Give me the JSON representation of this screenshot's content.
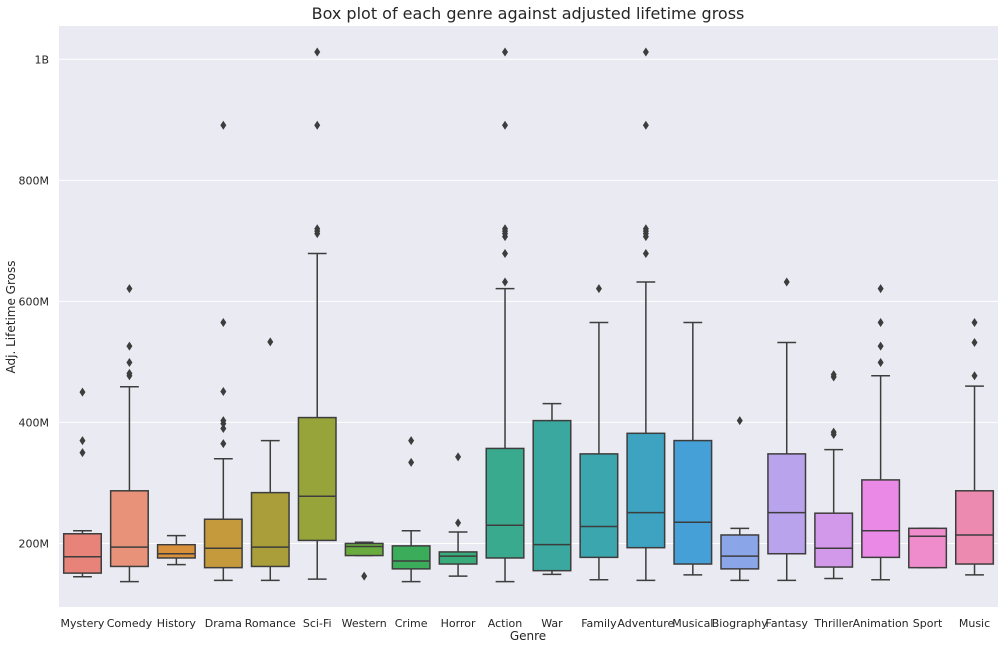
{
  "chart_data": {
    "type": "box",
    "title": "Box plot of each genre against adjusted lifetime gross",
    "xlabel": "Genre",
    "ylabel": "Adj. Lifetime Gross",
    "ylim": [
      95000000,
      1055000000
    ],
    "yticks": [
      {
        "value": 200000000,
        "label": "200M"
      },
      {
        "value": 400000000,
        "label": "400M"
      },
      {
        "value": 600000000,
        "label": "600M"
      },
      {
        "value": 800000000,
        "label": "800M"
      },
      {
        "value": 1000000000,
        "label": "1B"
      }
    ],
    "grid": true,
    "boxes": [
      {
        "category": "Mystery",
        "color": "#e8837a",
        "whislo": 145000000,
        "q1": 151000000,
        "median": 178000000,
        "q3": 216000000,
        "whishi": 221000000,
        "outliers": [
          350000000,
          370000000,
          450000000
        ]
      },
      {
        "category": "Comedy",
        "color": "#e8927a",
        "whislo": 137000000,
        "q1": 162000000,
        "median": 194000000,
        "q3": 287000000,
        "whishi": 459000000,
        "outliers": [
          477000000,
          481000000,
          499000000,
          526000000,
          621000000
        ]
      },
      {
        "category": "History",
        "color": "#d9903b",
        "whislo": 165000000,
        "q1": 176000000,
        "median": 183000000,
        "q3": 198000000,
        "whishi": 213000000,
        "outliers": []
      },
      {
        "category": "Drama",
        "color": "#c49a3c",
        "whislo": 139000000,
        "q1": 160000000,
        "median": 192000000,
        "q3": 240000000,
        "whishi": 340000000,
        "outliers": [
          365000000,
          390000000,
          398000000,
          403000000,
          451000000,
          565000000,
          891000000
        ]
      },
      {
        "category": "Romance",
        "color": "#aa9e3a",
        "whislo": 139000000,
        "q1": 162000000,
        "median": 194000000,
        "q3": 284000000,
        "whishi": 370000000,
        "outliers": [
          533000000
        ]
      },
      {
        "category": "Sci-Fi",
        "color": "#96a43a",
        "whislo": 141000000,
        "q1": 205000000,
        "median": 278000000,
        "q3": 408000000,
        "whishi": 679000000,
        "outliers": [
          712000000,
          716000000,
          720000000,
          891000000,
          1012000000
        ]
      },
      {
        "category": "Western",
        "color": "#6aab3f",
        "whislo": 180000000,
        "q1": 180000000,
        "median": 195000000,
        "q3": 200000000,
        "whishi": 202000000,
        "outliers": [
          146000000
        ]
      },
      {
        "category": "Crime",
        "color": "#3aac5a",
        "whislo": 137000000,
        "q1": 158000000,
        "median": 171000000,
        "q3": 196000000,
        "whishi": 221000000,
        "outliers": [
          334000000,
          370000000
        ]
      },
      {
        "category": "Horror",
        "color": "#3aac7c",
        "whislo": 146000000,
        "q1": 166000000,
        "median": 179000000,
        "q3": 186000000,
        "whishi": 219000000,
        "outliers": [
          234000000,
          343000000
        ]
      },
      {
        "category": "Action",
        "color": "#3aaa8e",
        "whislo": 137000000,
        "q1": 176000000,
        "median": 230000000,
        "q3": 357000000,
        "whishi": 621000000,
        "outliers": [
          632000000,
          679000000,
          707000000,
          712000000,
          716000000,
          720000000,
          891000000,
          1012000000
        ]
      },
      {
        "category": "War",
        "color": "#3aa89e",
        "whislo": 149000000,
        "q1": 155000000,
        "median": 198000000,
        "q3": 403000000,
        "whishi": 431000000,
        "outliers": []
      },
      {
        "category": "Family",
        "color": "#3ba6ad",
        "whislo": 140000000,
        "q1": 177000000,
        "median": 228000000,
        "q3": 348000000,
        "whishi": 565000000,
        "outliers": [
          621000000
        ]
      },
      {
        "category": "Adventure",
        "color": "#3da3c0",
        "whislo": 139000000,
        "q1": 193000000,
        "median": 251000000,
        "q3": 382000000,
        "whishi": 632000000,
        "outliers": [
          679000000,
          707000000,
          712000000,
          716000000,
          720000000,
          891000000,
          1012000000
        ]
      },
      {
        "category": "Musical",
        "color": "#44a0d6",
        "whislo": 148000000,
        "q1": 166000000,
        "median": 235000000,
        "q3": 370000000,
        "whishi": 565000000,
        "outliers": []
      },
      {
        "category": "Biography",
        "color": "#8aa6e8",
        "whislo": 139000000,
        "q1": 158000000,
        "median": 179000000,
        "q3": 214000000,
        "whishi": 225000000,
        "outliers": [
          403000000
        ]
      },
      {
        "category": "Fantasy",
        "color": "#b8a3ec",
        "whislo": 139000000,
        "q1": 183000000,
        "median": 251000000,
        "q3": 348000000,
        "whishi": 532000000,
        "outliers": [
          632000000
        ]
      },
      {
        "category": "Thriller",
        "color": "#d298ea",
        "whislo": 142000000,
        "q1": 161000000,
        "median": 192000000,
        "q3": 250000000,
        "whishi": 355000000,
        "outliers": [
          380000000,
          384000000,
          475000000,
          479000000
        ]
      },
      {
        "category": "Animation",
        "color": "#ea8ae6",
        "whislo": 140000000,
        "q1": 177000000,
        "median": 221000000,
        "q3": 305000000,
        "whishi": 477000000,
        "outliers": [
          499000000,
          526000000,
          565000000,
          621000000
        ]
      },
      {
        "category": "Sport",
        "color": "#ee8ccc",
        "whislo": 160000000,
        "q1": 160000000,
        "median": 212000000,
        "q3": 225000000,
        "whishi": 225000000,
        "outliers": []
      },
      {
        "category": "Music",
        "color": "#ec8ab0",
        "whislo": 148000000,
        "q1": 166000000,
        "median": 214000000,
        "q3": 287000000,
        "whishi": 460000000,
        "outliers": [
          477000000,
          532000000,
          565000000
        ]
      }
    ]
  }
}
